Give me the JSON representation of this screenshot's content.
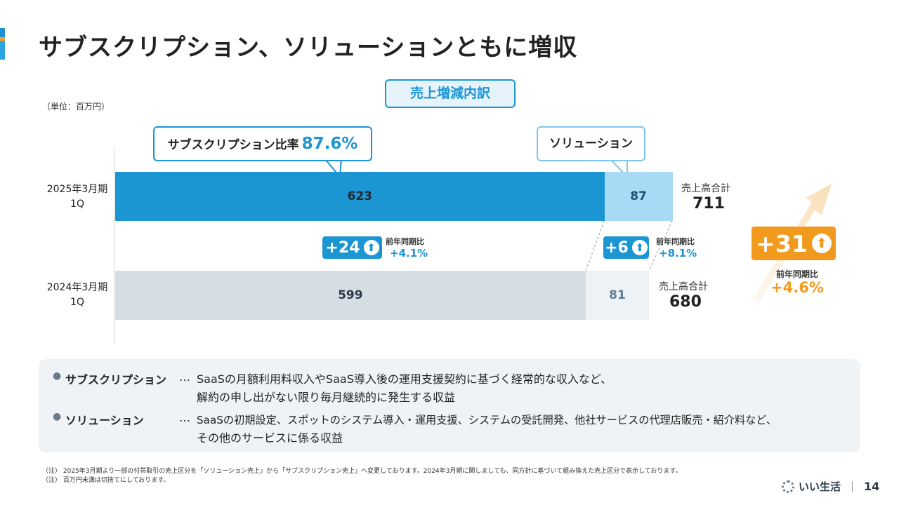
{
  "slide": {
    "title": "サブスクリプション、ソリューションともに増収",
    "section_label": "売上増減内訳",
    "unit": "（単位：百万円）",
    "page_number": "14",
    "brand": "いい生活"
  },
  "callouts": {
    "subscription_text": "サブスクリプション比率",
    "subscription_ratio": "87.6%",
    "solution_text": "ソリューション"
  },
  "chart_data": {
    "type": "bar",
    "orientation": "horizontal",
    "stacked": true,
    "categories": [
      "2025年3月期 1Q",
      "2024年3月期 1Q"
    ],
    "category_lines": [
      [
        "2025年3月期",
        "1Q"
      ],
      [
        "2024年3月期",
        "1Q"
      ]
    ],
    "series": [
      {
        "name": "サブスクリプション",
        "values": [
          623,
          599
        ],
        "colors": [
          "#1c95d3",
          "#d6dde3"
        ]
      },
      {
        "name": "ソリューション",
        "values": [
          87,
          81
        ],
        "colors": [
          "#a8daf5",
          "#eff2f4"
        ]
      }
    ],
    "totals": [
      {
        "label": "売上高合計",
        "value": "711"
      },
      {
        "label": "売上高合計",
        "value": "680"
      }
    ],
    "changes": {
      "subscription": {
        "delta": "+24",
        "yoy_label": "前年同期比",
        "yoy": "+4.1%"
      },
      "solution": {
        "delta": "+6",
        "yoy_label": "前年同期比",
        "yoy": "+8.1%"
      },
      "total": {
        "delta": "+31",
        "yoy_label": "前年同期比",
        "yoy": "+4.6%"
      }
    },
    "colors": {
      "accent_blue": "#1c95d3",
      "accent_orange": "#f29a1e"
    }
  },
  "descriptions": [
    {
      "term": "サブスクリプション",
      "dots": "…",
      "lines": [
        "SaaSの月額利用料収入やSaaS導入後の運用支援契約に基づく経常的な収入など、",
        "解約の申し出がない限り毎月継続的に発生する収益"
      ]
    },
    {
      "term": "ソリューション",
      "dots": "…",
      "lines": [
        "SaaSの初期設定、スポットのシステム導入・運用支援、システムの受託開発、他社サービスの代理店販売・紹介料など、",
        "その他のサービスに係る収益"
      ]
    }
  ],
  "notes": [
    "（注） 2025年3月期より一部の付帯取引の売上区分を「ソリューション売上」から「サブスクリプション売上」へ変更しております。2024年3月期に関しましても、同方針に基づいて組み換えた売上区分で表示しております。",
    "（注） 百万円未満は切捨てにしております。"
  ]
}
